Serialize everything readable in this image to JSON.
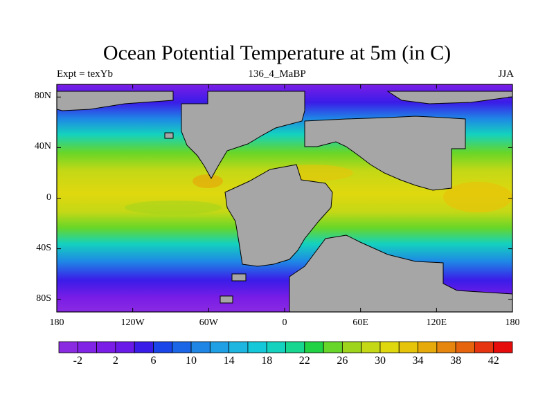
{
  "title": "Ocean Potential Temperature at 5m (in C)",
  "subtitle_left": "Expt = texYb",
  "subtitle_center": "136_4_MaBP",
  "subtitle_right": "JJA",
  "lat_ticks": [
    "80N",
    "40N",
    "0",
    "40S",
    "80S"
  ],
  "lat_values": [
    80,
    40,
    0,
    -40,
    -80
  ],
  "lon_ticks": [
    "180",
    "120W",
    "60W",
    "0",
    "60E",
    "120E",
    "180"
  ],
  "lon_values": [
    -180,
    -120,
    -60,
    0,
    60,
    120,
    180
  ],
  "lat_range": [
    -90,
    90
  ],
  "lon_range": [
    -180,
    180
  ],
  "land_color": "#a6a6a6",
  "colorbar": {
    "levels": [
      -4,
      -2,
      0,
      2,
      4,
      6,
      8,
      10,
      12,
      14,
      16,
      18,
      20,
      22,
      24,
      26,
      28,
      30,
      32,
      34,
      36,
      38,
      40,
      42
    ],
    "labels": [
      "-2",
      "2",
      "6",
      "10",
      "14",
      "18",
      "22",
      "26",
      "30",
      "34",
      "38",
      "42"
    ],
    "colors": [
      "#8a2be2",
      "#8224e6",
      "#7a1de6",
      "#6a1ae8",
      "#3a1ce8",
      "#1a45e8",
      "#1b66e6",
      "#1f86e6",
      "#20a0e4",
      "#1cb6e0",
      "#14c8da",
      "#14d2be",
      "#18d690",
      "#20d244",
      "#68d628",
      "#9ed41c",
      "#c4d816",
      "#e0d80e",
      "#e6c40a",
      "#e6aa0a",
      "#e6860e",
      "#e6640e",
      "#e63410",
      "#e60c0c"
    ]
  }
}
